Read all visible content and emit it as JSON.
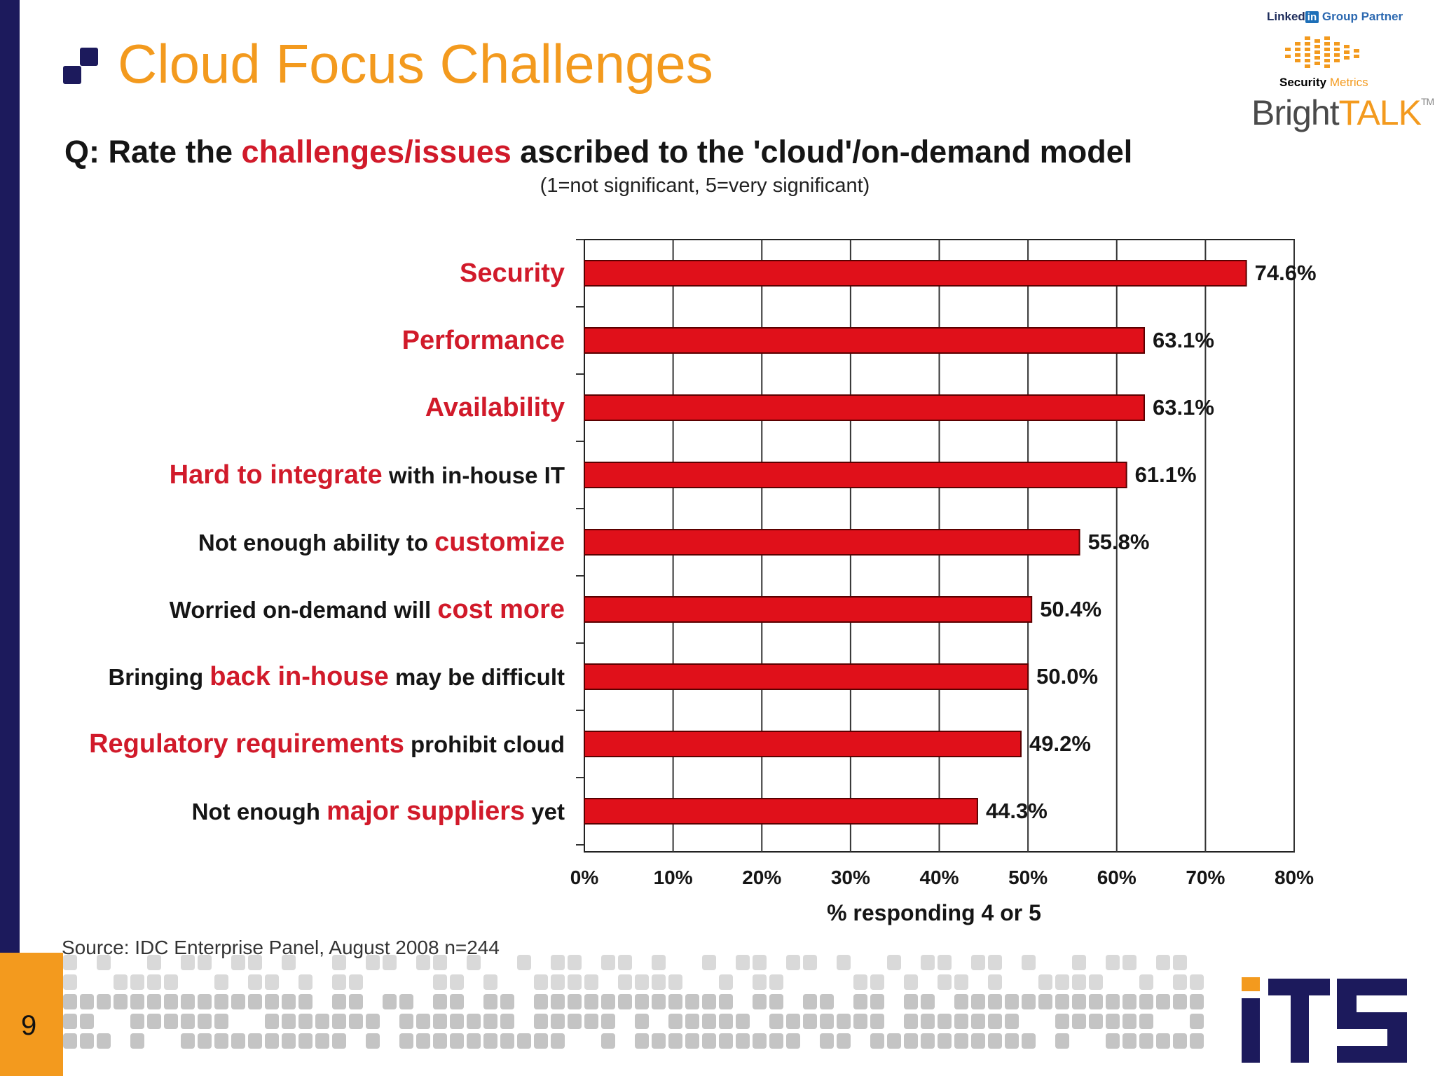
{
  "slide": {
    "title": "Cloud Focus Challenges",
    "page_number": "9",
    "accent_color": "#f39a1e",
    "navy_color": "#1c1a5c"
  },
  "logos": {
    "linkedin_prefix": "Linked",
    "linkedin_in": "in",
    "linkedin_suffix": "Group Partner",
    "securitymetrics_a": "Security",
    "securitymetrics_b": "Metrics",
    "brighttalk_a": "Bright",
    "brighttalk_b": "TALK",
    "brighttalk_tm": "TM",
    "its": "iTS"
  },
  "question": {
    "prefix": "Q: Rate the ",
    "highlight": "challenges/issues",
    "suffix": " ascribed to the 'cloud'/on-demand model",
    "scale_note": "(1=not significant, 5=very significant)"
  },
  "source": "Source: IDC Enterprise Panel, August 2008  n=244",
  "chart_data": {
    "type": "bar",
    "orientation": "horizontal",
    "categories": [
      "Security",
      "Performance",
      "Availability",
      "Hard to integrate with in-house IT",
      "Not enough ability to customize",
      "Worried on-demand will cost more",
      "Bringing back in-house may be difficult",
      "Regulatory requirements prohibit cloud",
      "Not enough major suppliers yet"
    ],
    "category_label_parts": [
      [
        {
          "text": "Security",
          "red": true
        }
      ],
      [
        {
          "text": "Performance",
          "red": true
        }
      ],
      [
        {
          "text": "Availability",
          "red": true
        }
      ],
      [
        {
          "text": "Hard to integrate",
          "red": true
        },
        {
          "text": " with in-house IT",
          "red": false
        }
      ],
      [
        {
          "text": "Not enough ability to ",
          "red": false
        },
        {
          "text": "customize",
          "red": true
        }
      ],
      [
        {
          "text": "Worried on-demand will ",
          "red": false
        },
        {
          "text": "cost more",
          "red": true
        }
      ],
      [
        {
          "text": "Bringing ",
          "red": false
        },
        {
          "text": "back in-house",
          "red": true
        },
        {
          "text": " may be difficult",
          "red": false
        }
      ],
      [
        {
          "text": "Regulatory requirements",
          "red": true
        },
        {
          "text": " prohibit cloud",
          "red": false
        }
      ],
      [
        {
          "text": "Not enough ",
          "red": false
        },
        {
          "text": "major suppliers",
          "red": true
        },
        {
          "text": " yet",
          "red": false
        }
      ]
    ],
    "values": [
      74.6,
      63.1,
      63.1,
      61.1,
      55.8,
      50.4,
      50.0,
      49.2,
      44.3
    ],
    "value_labels": [
      "74.6%",
      "63.1%",
      "63.1%",
      "61.1%",
      "55.8%",
      "50.4%",
      "50.0%",
      "49.2%",
      "44.3%"
    ],
    "xlim": [
      0,
      80
    ],
    "xticks": [
      "0%",
      "10%",
      "20%",
      "30%",
      "40%",
      "50%",
      "60%",
      "70%",
      "80%"
    ],
    "xlabel": "% responding 4 or 5",
    "grid": true,
    "bar_color": "#e0101a",
    "label_red": "#d11a2a"
  }
}
